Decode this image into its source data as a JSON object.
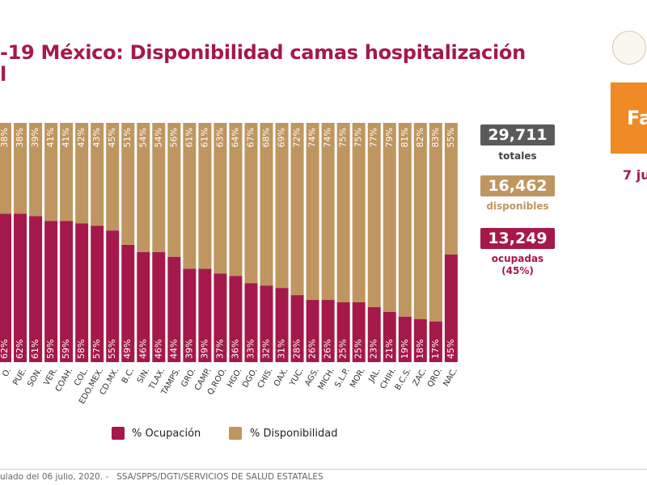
{
  "header": {
    "title_line1": "-19 México: Disponibilidad camas hospitalización",
    "title_line2": "l"
  },
  "side_box": {
    "label": "Fa"
  },
  "date_label": "7 ju",
  "stats": {
    "total_value": "29,711",
    "total_label": "totales",
    "available_value": "16,462",
    "available_label": "disponibles",
    "occupied_value": "13,249",
    "occupied_label": "ocupadas",
    "occupied_pct": "(45%)"
  },
  "legend": {
    "occupancy_label": "% Ocupación",
    "availability_label": "% Disponibilidad"
  },
  "footer": {
    "text": "ulado del 06 julio, 2020. -   SSA/SPPS/DGTI/SERVICIOS DE SALUD ESTATALES"
  },
  "colors": {
    "occupancy": "#a5194a",
    "availability": "#bf9660",
    "stat_dark": "#5a5a5a",
    "stat_gold": "#bf9660",
    "stat_red": "#a5194a",
    "orange": "#f08a24"
  },
  "chart_data": {
    "type": "bar",
    "stacked": true,
    "percent": true,
    "categories": [
      "O.",
      "PUE.",
      "SON.",
      "VER.",
      "COAH.",
      "COL.",
      "EDO.MEX.",
      "CD.MX.",
      "B.C.",
      "SIN.",
      "TLAX.",
      "TAMPS.",
      "GRO.",
      "CAMP.",
      "Q.ROO.",
      "HGO.",
      "DGO.",
      "CHIS.",
      "OAX.",
      "YUC.",
      "AGS.",
      "MICH.",
      "S.L.P.",
      "MOR.",
      "JAL.",
      "CHIH.",
      "B.C.S.",
      "ZAC.",
      "QRO.",
      "NAC."
    ],
    "series": [
      {
        "name": "% Ocupación",
        "values": [
          62,
          62,
          61,
          59,
          59,
          58,
          57,
          55,
          49,
          46,
          46,
          44,
          39,
          39,
          37,
          36,
          33,
          32,
          31,
          28,
          26,
          26,
          25,
          25,
          23,
          21,
          19,
          18,
          17,
          45
        ]
      },
      {
        "name": "% Disponibilidad",
        "values": [
          38,
          38,
          39,
          41,
          41,
          42,
          43,
          45,
          51,
          54,
          54,
          56,
          61,
          61,
          63,
          64,
          67,
          68,
          69,
          72,
          74,
          74,
          75,
          75,
          77,
          79,
          81,
          82,
          83,
          55
        ]
      }
    ],
    "ylim": [
      0,
      100
    ]
  }
}
